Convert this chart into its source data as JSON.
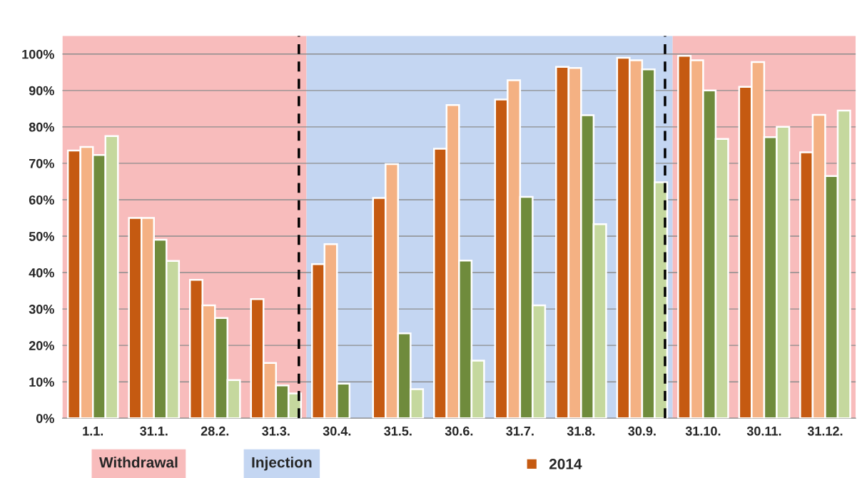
{
  "chart_data": {
    "type": "bar",
    "categories": [
      "1.1.",
      "31.1.",
      "28.2.",
      "31.3.",
      "30.4.",
      "31.5.",
      "30.6.",
      "31.7.",
      "31.8.",
      "30.9.",
      "31.10.",
      "30.11.",
      "31.12."
    ],
    "series": [
      {
        "name": "2014",
        "color": "#c55a11",
        "values": [
          73.5,
          55,
          38,
          32.7,
          42.3,
          60.5,
          74,
          87.5,
          96.5,
          99,
          99.5,
          91,
          73
        ]
      },
      {
        "color": "#f4b183",
        "values": [
          74.5,
          55,
          31,
          15.2,
          47.8,
          69.8,
          86,
          92.8,
          96.2,
          98.3,
          98.3,
          97.8,
          83.3
        ]
      },
      {
        "color": "#6f8b3c",
        "values": [
          72.3,
          49,
          27.5,
          9,
          9.5,
          23.3,
          43.3,
          60.8,
          83.2,
          95.8,
          90,
          77.2,
          66.5
        ]
      },
      {
        "color": "#c5d89e",
        "values": [
          77.5,
          43.2,
          10.5,
          6.8,
          null,
          8,
          15.8,
          31,
          53.3,
          64.8,
          76.7,
          80,
          84.5
        ]
      }
    ],
    "ylim": [
      0,
      105
    ],
    "yticks": [
      {
        "value": 0,
        "label": "0%"
      },
      {
        "value": 10,
        "label": "10%"
      },
      {
        "value": 20,
        "label": "20%"
      },
      {
        "value": 30,
        "label": "30%"
      },
      {
        "value": 40,
        "label": "40%"
      },
      {
        "value": 50,
        "label": "50%"
      },
      {
        "value": 60,
        "label": "60%"
      },
      {
        "value": 70,
        "label": "70%"
      },
      {
        "value": 80,
        "label": "80%"
      },
      {
        "value": 90,
        "label": "90%"
      },
      {
        "value": 100,
        "label": "100%"
      }
    ],
    "bands": [
      {
        "axis": "x",
        "from": "1.1.",
        "to": "31.3.",
        "label": "Withdrawal",
        "color": "#f8bcbc"
      },
      {
        "axis": "x",
        "from": "30.4.",
        "to": "30.9.",
        "label": "Injection",
        "color": "#c4d6f2"
      },
      {
        "axis": "x",
        "from": "31.10.",
        "to": "31.12.",
        "color": "#f8bcbc"
      }
    ],
    "ref_lines": [
      {
        "axis": "x",
        "value": "31.3.",
        "color": "#000000",
        "line_style": "dashed"
      },
      {
        "axis": "x",
        "value": "30.9.",
        "color": "#000000",
        "line_style": "dashed"
      }
    ],
    "grid": "y",
    "legend": "bottom"
  }
}
